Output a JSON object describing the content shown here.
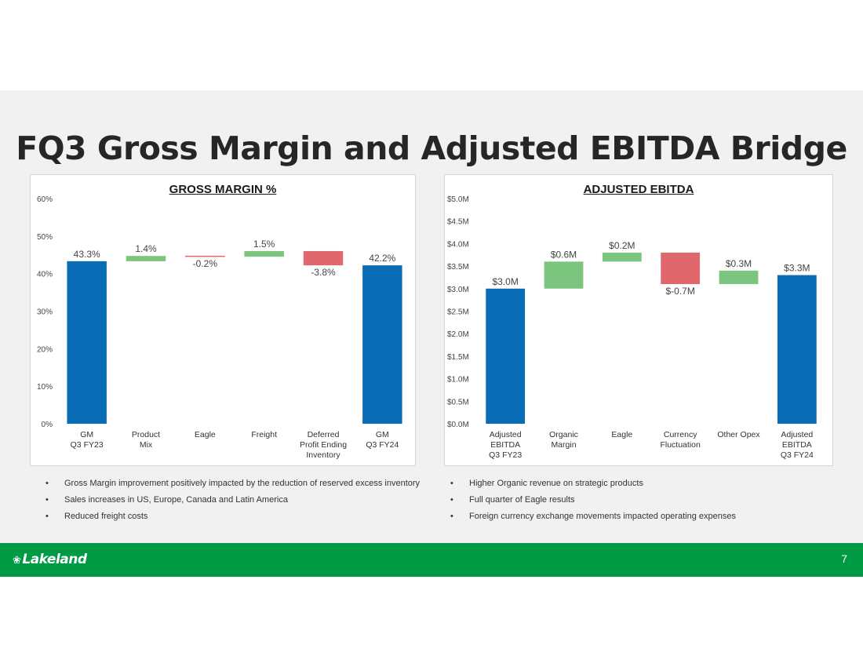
{
  "title": "FQ3 Gross Margin and Adjusted EBITDA Bridge",
  "colors": {
    "total": "#0a6cb5",
    "increase": "#7cc57f",
    "decrease": "#e0686c",
    "footer": "#009a44"
  },
  "chart_data": [
    {
      "type": "bar",
      "subtype": "waterfall",
      "title": "GROSS MARGIN %",
      "ylim": [
        0,
        60
      ],
      "yticks": [
        {
          "value": 0,
          "label": "0%"
        },
        {
          "value": 10,
          "label": "10%"
        },
        {
          "value": 20,
          "label": "20%"
        },
        {
          "value": 30,
          "label": "30%"
        },
        {
          "value": 40,
          "label": "40%"
        },
        {
          "value": 50,
          "label": "50%"
        },
        {
          "value": 60,
          "label": "60%"
        }
      ],
      "grid": false,
      "steps": [
        {
          "category": [
            "GM",
            "Q3 FY23"
          ],
          "kind": "total",
          "value": 43.3,
          "label": "43.3%"
        },
        {
          "category": [
            "Product",
            "Mix"
          ],
          "kind": "increase",
          "value": 1.4,
          "label": "1.4%"
        },
        {
          "category": [
            "Eagle"
          ],
          "kind": "decrease",
          "value": -0.2,
          "label": "-0.2%"
        },
        {
          "category": [
            "Freight"
          ],
          "kind": "increase",
          "value": 1.5,
          "label": "1.5%"
        },
        {
          "category": [
            "Deferred",
            "Profit Ending",
            "Inventory"
          ],
          "kind": "decrease",
          "value": -3.8,
          "label": "-3.8%"
        },
        {
          "category": [
            "GM",
            "Q3 FY24"
          ],
          "kind": "total",
          "value": 42.2,
          "label": "42.2%"
        }
      ]
    },
    {
      "type": "bar",
      "subtype": "waterfall",
      "title": "ADJUSTED EBITDA",
      "ylim": [
        0,
        5.0
      ],
      "yticks": [
        {
          "value": 0,
          "label": "$0.0M"
        },
        {
          "value": 0.5,
          "label": "$0.5M"
        },
        {
          "value": 1.0,
          "label": "$1.0M"
        },
        {
          "value": 1.5,
          "label": "$1.5M"
        },
        {
          "value": 2.0,
          "label": "$2.0M"
        },
        {
          "value": 2.5,
          "label": "$2.5M"
        },
        {
          "value": 3.0,
          "label": "$3.0M"
        },
        {
          "value": 3.5,
          "label": "$3.5M"
        },
        {
          "value": 4.0,
          "label": "$4.0M"
        },
        {
          "value": 4.5,
          "label": "$4.5M"
        },
        {
          "value": 5.0,
          "label": "$5.0M"
        }
      ],
      "grid": false,
      "steps": [
        {
          "category": [
            "Adjusted",
            "EBITDA",
            "Q3 FY23"
          ],
          "kind": "total",
          "value": 3.0,
          "label": "$3.0M"
        },
        {
          "category": [
            "Organic",
            "Margin"
          ],
          "kind": "increase",
          "value": 0.6,
          "label": "$0.6M"
        },
        {
          "category": [
            "Eagle"
          ],
          "kind": "increase",
          "value": 0.2,
          "label": "$0.2M"
        },
        {
          "category": [
            "Currency",
            "Fluctuation"
          ],
          "kind": "decrease",
          "value": -0.7,
          "label": "$-0.7M"
        },
        {
          "category": [
            "Other Opex"
          ],
          "kind": "increase",
          "value": 0.3,
          "label": "$0.3M"
        },
        {
          "category": [
            "Adjusted",
            "EBITDA",
            "Q3 FY24"
          ],
          "kind": "total",
          "value": 3.3,
          "label": "$3.3M"
        }
      ]
    }
  ],
  "bullets_left": [
    "Gross Margin improvement positively impacted by the reduction of reserved excess inventory",
    "Sales increases in US, Europe, Canada and Latin America",
    "Reduced freight costs"
  ],
  "bullets_right": [
    "Higher Organic revenue on strategic products",
    "Full quarter of Eagle results",
    "Foreign currency exchange movements impacted operating expenses"
  ],
  "footer": {
    "logo_text": "Lakeland",
    "logo_icon": "leaf-icon",
    "page_number": "7"
  }
}
